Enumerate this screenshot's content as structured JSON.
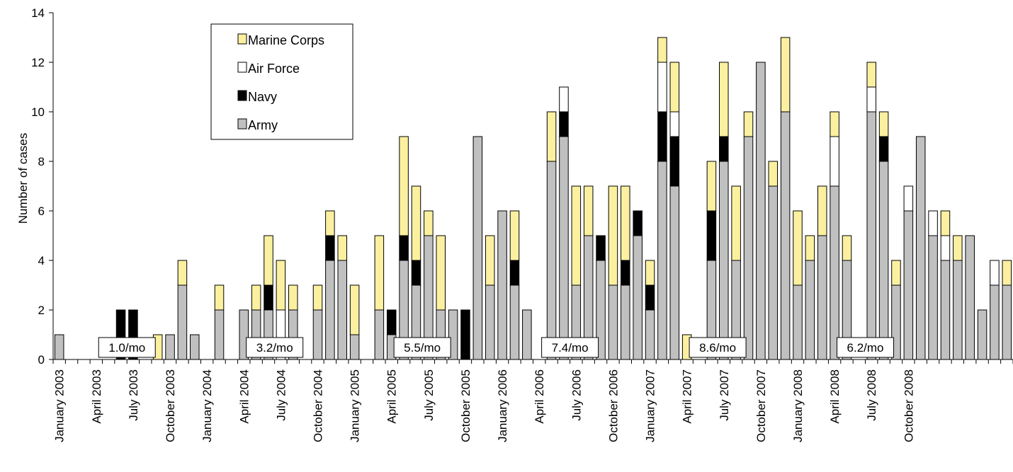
{
  "chart_data": {
    "type": "bar",
    "stacked": true,
    "ylabel": "Number of cases",
    "xlabel": "",
    "ylim": [
      0,
      14
    ],
    "yticks": [
      0,
      2,
      4,
      6,
      8,
      10,
      12,
      14
    ],
    "grid": false,
    "legend_position": "top-left",
    "legend": [
      "Marine Corps",
      "Air Force",
      "Navy",
      "Army"
    ],
    "months_start": "January 2003",
    "x_tick_labels": [
      "January 2003",
      "April 2003",
      "July 2003",
      "October 2003",
      "January 2004",
      "April 2004",
      "July 2004",
      "October 2004",
      "January 2005",
      "April 2005",
      "July 2005",
      "October 2005",
      "January 2006",
      "April 2006",
      "July 2006",
      "October 2006",
      "January 2007",
      "April 2007",
      "July 2007",
      "October 2007",
      "January 2008",
      "April 2008",
      "July 2008",
      "October 2008"
    ],
    "series": [
      {
        "name": "Army",
        "color": "#c0c0c0",
        "values": [
          1,
          0,
          0,
          0,
          0,
          0,
          0,
          0,
          0,
          1,
          3,
          1,
          0,
          2,
          0,
          2,
          2,
          2,
          0,
          2,
          0,
          2,
          4,
          4,
          1,
          0,
          2,
          1,
          4,
          3,
          5,
          2,
          2,
          0,
          9,
          3,
          6,
          3,
          2,
          0,
          8,
          9,
          3,
          5,
          4,
          3,
          3,
          5,
          2,
          8,
          7,
          0,
          0,
          4,
          8,
          4,
          9,
          12,
          7,
          10,
          3,
          4,
          5,
          7,
          4,
          0,
          10,
          8,
          3,
          6,
          9,
          5,
          4,
          4,
          5,
          2,
          3,
          3
        ]
      },
      {
        "name": "Navy",
        "color": "#000000",
        "values": [
          0,
          0,
          0,
          0,
          0,
          2,
          2,
          0,
          0,
          0,
          0,
          0,
          0,
          0,
          0,
          0,
          0,
          1,
          0,
          0,
          0,
          0,
          1,
          0,
          0,
          0,
          0,
          1,
          1,
          1,
          0,
          0,
          0,
          2,
          0,
          0,
          0,
          1,
          0,
          0,
          0,
          1,
          0,
          0,
          1,
          0,
          1,
          1,
          1,
          2,
          2,
          0,
          0,
          2,
          1,
          0,
          0,
          0,
          0,
          0,
          0,
          0,
          0,
          0,
          0,
          0,
          0,
          1,
          0,
          0,
          0,
          0,
          0,
          0,
          0,
          0,
          0,
          0
        ]
      },
      {
        "name": "Air Force",
        "color": "#ffffff",
        "values": [
          0,
          0,
          0,
          0,
          0,
          0,
          0,
          0,
          0,
          0,
          0,
          0,
          0,
          0,
          0,
          0,
          0,
          0,
          2,
          0,
          0,
          0,
          0,
          0,
          0,
          0,
          0,
          0,
          0,
          0,
          0,
          0,
          0,
          0,
          0,
          0,
          0,
          0,
          0,
          0,
          0,
          1,
          0,
          0,
          0,
          0,
          0,
          0,
          0,
          2,
          1,
          0,
          0,
          0,
          0,
          0,
          0,
          0,
          0,
          0,
          0,
          0,
          0,
          2,
          0,
          0,
          1,
          0,
          0,
          1,
          0,
          1,
          1,
          0,
          0,
          0,
          1,
          0
        ]
      },
      {
        "name": "Marine Corps",
        "color": "#fbf0a0",
        "values": [
          0,
          0,
          0,
          0,
          0,
          0,
          0,
          0,
          1,
          0,
          1,
          0,
          0,
          1,
          0,
          0,
          1,
          2,
          2,
          1,
          0,
          1,
          1,
          1,
          2,
          0,
          3,
          0,
          4,
          3,
          1,
          3,
          0,
          0,
          0,
          2,
          0,
          2,
          0,
          0,
          2,
          0,
          4,
          2,
          0,
          4,
          3,
          0,
          1,
          1,
          2,
          1,
          0,
          2,
          3,
          3,
          1,
          0,
          1,
          3,
          3,
          1,
          2,
          1,
          1,
          0,
          1,
          1,
          1,
          0,
          0,
          0,
          1,
          1,
          0,
          0,
          0,
          1
        ]
      }
    ],
    "rate_annotations": [
      {
        "year": "2003",
        "label": "1.0/mo"
      },
      {
        "year": "2004",
        "label": "3.2/mo"
      },
      {
        "year": "2005",
        "label": "5.5/mo"
      },
      {
        "year": "2006",
        "label": "7.4/mo"
      },
      {
        "year": "2007",
        "label": "8.6/mo"
      },
      {
        "year": "2008",
        "label": "6.2/mo"
      }
    ]
  }
}
